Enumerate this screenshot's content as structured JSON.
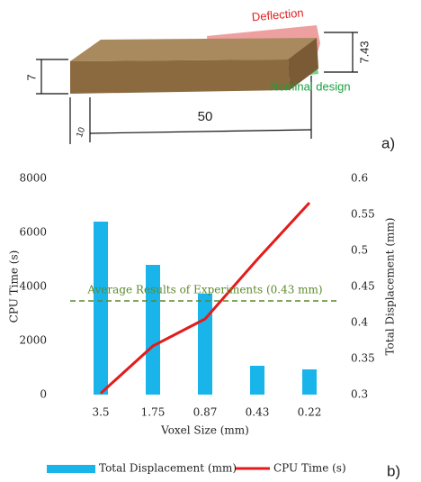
{
  "diagram": {
    "labels": {
      "deflection": "Deflection",
      "height": "7",
      "deflected_height": "7.43",
      "nominal": "Nominal design",
      "length": "50",
      "width": "10"
    },
    "panel_a": "a)",
    "panel_b": "b)"
  },
  "chart_data": {
    "type": "bar_line",
    "categories": [
      "3.5",
      "1.75",
      "0.87",
      "0.43",
      "0.22"
    ],
    "x_label": "Voxel Size (mm)",
    "y_label": "CPU Time (s)",
    "y2_label": "Total Displacement  (mm)",
    "series": [
      {
        "name": "Total Displacement (mm)",
        "type": "bar",
        "axis": "y2",
        "color": "#19b5ea",
        "values": [
          0.54,
          0.48,
          0.44,
          0.34,
          0.335
        ]
      },
      {
        "name": "CPU Time (s)",
        "type": "line",
        "color": "#e31b1b",
        "values": [
          50,
          1800,
          2800,
          5000,
          7100
        ]
      }
    ],
    "ylim": [
      0,
      8000
    ],
    "yticks": [
      0,
      2000,
      4000,
      6000,
      8000
    ],
    "y2lim": [
      0.3,
      0.6
    ],
    "y2ticks": [
      0.3,
      0.35,
      0.4,
      0.45,
      0.5,
      0.55,
      0.6
    ],
    "reference_line": {
      "value": 0.43,
      "axis": "y2",
      "label": "Average Results of Experiments (0.43 mm)",
      "color": "#5a8a2a"
    },
    "grid": false,
    "legend": "bottom"
  }
}
